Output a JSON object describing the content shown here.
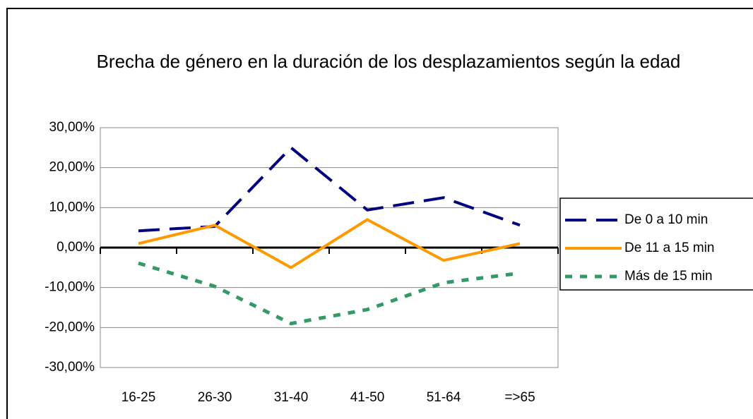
{
  "chart_data": {
    "type": "line",
    "title": "Brecha de género en la duración de los desplazamientos según la edad",
    "categories": [
      "16-25",
      "26-30",
      "31-40",
      "41-50",
      "51-64",
      "=>65"
    ],
    "series": [
      {
        "name": "De 0 a 10 min",
        "color": "#000080",
        "values": [
          4.2,
          5.3,
          25,
          9.4,
          12.5,
          5.6
        ]
      },
      {
        "name": "De 11 a 15 min",
        "color": "#ff9900",
        "values": [
          1,
          5.6,
          -5,
          7,
          -3.2,
          1
        ]
      },
      {
        "name": "Más de 15 min",
        "color": "#339966",
        "values": [
          -3.9,
          -9.7,
          -19,
          -15.5,
          -8.8,
          -6.4
        ]
      }
    ],
    "ylim": [
      -30,
      30
    ],
    "yticks": [
      {
        "value": -30,
        "label": "-30,00%"
      },
      {
        "value": -20,
        "label": "-20,00%"
      },
      {
        "value": -10,
        "label": "-10,00%"
      },
      {
        "value": 0,
        "label": "0,00%"
      },
      {
        "value": 10,
        "label": "10,00%"
      },
      {
        "value": 20,
        "label": "20,00%"
      },
      {
        "value": 30,
        "label": "30,00%"
      }
    ],
    "grid": true,
    "legend": "right"
  }
}
